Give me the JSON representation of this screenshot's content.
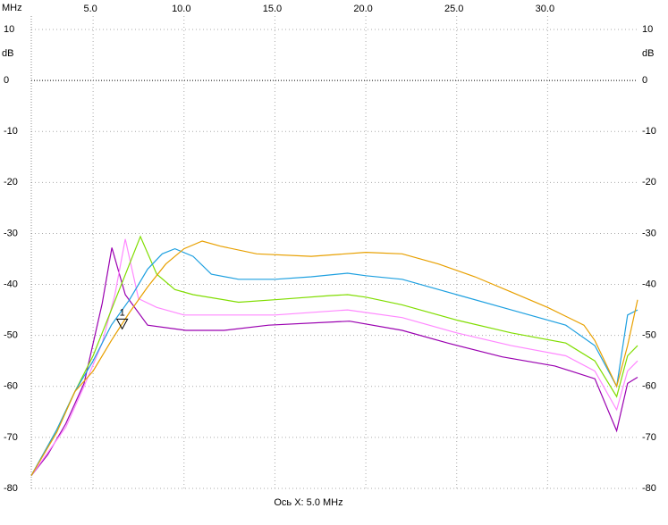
{
  "chart_data": {
    "type": "line",
    "x_unit": "MHz",
    "y_unit": "dB",
    "x_label": "Ось X: 5.0 MHz",
    "xlim": [
      1.6,
      34.9
    ],
    "ylim": [
      -80,
      10
    ],
    "xticks": [
      {
        "value": 5,
        "label": "5.0"
      },
      {
        "value": 10,
        "label": "10.0"
      },
      {
        "value": 15,
        "label": "15.0"
      },
      {
        "value": 20,
        "label": "20.0"
      },
      {
        "value": 25,
        "label": "25.0"
      },
      {
        "value": 30,
        "label": "30.0"
      }
    ],
    "yticks": [
      10,
      0,
      -10,
      -20,
      -30,
      -40,
      -50,
      -60,
      -70,
      -80
    ],
    "grid": true,
    "marker": {
      "label": "1",
      "x": 6.6,
      "y": -47.5
    },
    "series": [
      {
        "color": "#9a00b0",
        "x": [
          1.6,
          2.5,
          3.5,
          4.5,
          5.5,
          6.03,
          6.77,
          8.0,
          10.1,
          12.2,
          14.65,
          19.1,
          22,
          24.5,
          27.5,
          30.4,
          32.6,
          33.8,
          34.4,
          34.95
        ],
        "values": [
          -77.5,
          -73.4,
          -67.3,
          -59.4,
          -43.7,
          -32.8,
          -42,
          -48,
          -49,
          -49,
          -48,
          -47.2,
          -49,
          -51.5,
          -54.2,
          -56,
          -58.5,
          -68.7,
          -59.4,
          -58.2
        ]
      },
      {
        "color": "#ff88ff",
        "x": [
          1.6,
          2.5,
          3.5,
          4.5,
          5.5,
          6.2,
          6.77,
          7.5,
          8.5,
          10,
          15,
          19,
          22,
          25,
          28,
          31,
          32.6,
          33.8,
          34.4,
          34.95
        ],
        "values": [
          -77.5,
          -73,
          -68,
          -60,
          -51.5,
          -42,
          -31.1,
          -42.8,
          -44.5,
          -46,
          -46,
          -45,
          -46.5,
          -49.5,
          -52,
          -54,
          -57,
          -64.6,
          -57,
          -55
        ]
      },
      {
        "color": "#80dd00",
        "x": [
          1.6,
          3,
          4,
          5,
          6,
          7.6,
          8.5,
          9.5,
          10.5,
          13,
          15,
          18,
          19,
          20,
          22,
          25,
          28,
          31,
          32.6,
          33.8,
          34.4,
          34.95
        ],
        "values": [
          -77.5,
          -68.5,
          -61,
          -54,
          -45,
          -30.6,
          -38,
          -41,
          -42,
          -43.5,
          -43,
          -42.2,
          -42,
          -42.5,
          -44,
          -47,
          -49.5,
          -51.5,
          -55,
          -62,
          -54,
          -52
        ]
      },
      {
        "color": "#1ea0e0",
        "x": [
          1.6,
          3,
          4,
          5,
          6,
          7,
          8,
          8.8,
          9.5,
          10.5,
          11.5,
          13,
          15,
          17,
          19,
          20,
          22,
          25,
          28,
          31,
          32.6,
          33.8,
          34.4,
          34.95
        ],
        "values": [
          -77.5,
          -68.5,
          -61,
          -55,
          -48,
          -43,
          -37,
          -34,
          -33,
          -34.5,
          -38,
          -39,
          -39,
          -38.5,
          -37.8,
          -38.3,
          -39,
          -42,
          -45,
          -48,
          -52,
          -60,
          -46,
          -45
        ]
      },
      {
        "color": "#e8a000",
        "x": [
          1.6,
          3,
          4,
          5,
          6,
          7,
          8,
          9,
          10,
          11,
          12,
          14,
          17,
          20,
          22,
          24,
          26,
          28,
          30,
          32,
          32.6,
          33.8,
          34.4,
          34.95
        ],
        "values": [
          -77.5,
          -69,
          -61,
          -57,
          -51,
          -45.5,
          -40.5,
          -36,
          -33,
          -31.5,
          -32.5,
          -34,
          -34.5,
          -33.7,
          -34,
          -36,
          -38.5,
          -41.5,
          -44.5,
          -48,
          -51,
          -60,
          -52,
          -43
        ]
      }
    ]
  }
}
